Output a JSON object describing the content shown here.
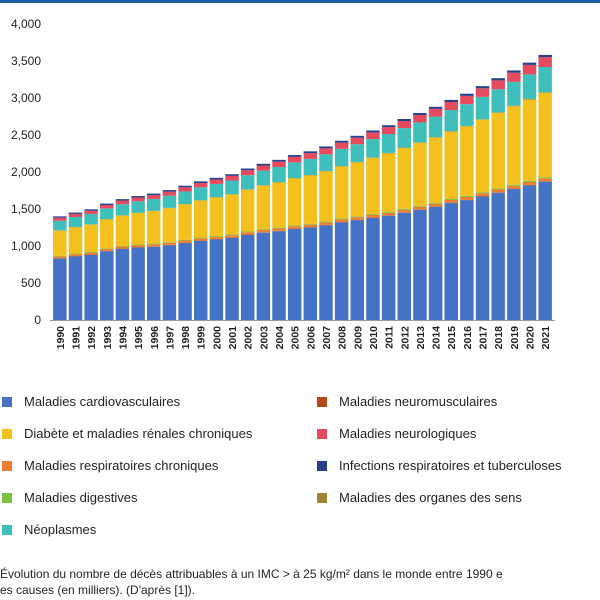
{
  "colors": {
    "Maladies cardiovasculaires": "#4472c4",
    "Maladies neuromusculaires": "#b44a1a",
    "Diabète et maladies rénales chroniques": "#f4c01e",
    "Maladies neurologiques": "#e64a5f",
    "Maladies respiratoires chroniques": "#ef7d30",
    "Infections respiratoires et tuberculoses": "#283f8c",
    "Maladies digestives": "#7cc242",
    "Maladies des organes des sens": "#a08434",
    "Néoplasmes": "#3fbfbb"
  },
  "legend": {
    "left": [
      "Maladies cardiovasculaires",
      "Diabète et maladies rénales chroniques",
      "Maladies respiratoires chroniques",
      "Maladies digestives",
      "Néoplasmes"
    ],
    "right": [
      "Maladies neuromusculaires",
      "Maladies neurologiques",
      "Infections respiratoires et tuberculoses",
      "Maladies des organes des sens"
    ]
  },
  "caption": {
    "line1": "Évolution du nombre de décès attribuables à un IMC > à 25 kg/m² dans le monde entre 1990 e",
    "line2": "es causes (en milliers). (D'après [1])."
  },
  "chart_data": {
    "type": "bar",
    "stacked": true,
    "title": "",
    "xlabel": "",
    "ylabel": "",
    "ylim": [
      0,
      4000
    ],
    "y_ticks": [
      "0",
      "500",
      "1,000",
      "1,500",
      "2,000",
      "2,500",
      "3,000",
      "3,500",
      "4,000"
    ],
    "grid": false,
    "legend_position": "bottom",
    "categories": [
      "1990",
      "1991",
      "1992",
      "1993",
      "1994",
      "1995",
      "1996",
      "1997",
      "1998",
      "1999",
      "2000",
      "2001",
      "2002",
      "2003",
      "2004",
      "2005",
      "2006",
      "2007",
      "2008",
      "2009",
      "2010",
      "2011",
      "2012",
      "2013",
      "2014",
      "2015",
      "2016",
      "2017",
      "2018",
      "2019",
      "2020",
      "2021"
    ],
    "series": [
      {
        "name": "Maladies cardiovasculaires",
        "values": [
          830,
          860,
          880,
          930,
          960,
          980,
          990,
          1010,
          1040,
          1070,
          1090,
          1110,
          1150,
          1180,
          1200,
          1230,
          1250,
          1280,
          1320,
          1350,
          1380,
          1410,
          1450,
          1490,
          1530,
          1580,
          1620,
          1670,
          1720,
          1770,
          1820,
          1870
        ]
      },
      {
        "name": "Maladies neuromusculaires",
        "values": [
          5,
          5,
          5,
          5,
          5,
          5,
          5,
          5,
          5,
          5,
          5,
          5,
          5,
          5,
          5,
          5,
          5,
          5,
          5,
          5,
          5,
          5,
          5,
          5,
          5,
          5,
          5,
          5,
          5,
          5,
          5,
          5
        ]
      },
      {
        "name": "Maladies respiratoires chroniques",
        "values": [
          25,
          25,
          26,
          26,
          27,
          27,
          28,
          28,
          29,
          29,
          30,
          30,
          31,
          31,
          32,
          32,
          33,
          33,
          34,
          34,
          35,
          35,
          36,
          36,
          37,
          37,
          38,
          38,
          39,
          39,
          40,
          40
        ]
      },
      {
        "name": "Maladies digestives",
        "values": [
          8,
          8,
          8,
          8,
          9,
          9,
          9,
          9,
          9,
          10,
          10,
          10,
          10,
          10,
          11,
          11,
          11,
          11,
          12,
          12,
          12,
          12,
          13,
          13,
          13,
          14,
          14,
          14,
          15,
          15,
          15,
          15
        ]
      },
      {
        "name": "Diabète et maladies rénales chroniques",
        "values": [
          340,
          355,
          370,
          390,
          410,
          425,
          440,
          460,
          480,
          500,
          520,
          540,
          565,
          590,
          610,
          635,
          655,
          680,
          705,
          730,
          760,
          790,
          820,
          850,
          880,
          910,
          940,
          980,
          1020,
          1060,
          1100,
          1140
        ]
      },
      {
        "name": "Maladies des organes des sens",
        "values": [
          4,
          4,
          4,
          4,
          4,
          4,
          4,
          4,
          4,
          4,
          4,
          5,
          5,
          5,
          5,
          5,
          5,
          5,
          5,
          5,
          5,
          6,
          6,
          6,
          6,
          6,
          6,
          6,
          7,
          7,
          7,
          7
        ]
      },
      {
        "name": "Néoplasmes",
        "values": [
          130,
          135,
          140,
          145,
          150,
          155,
          160,
          165,
          170,
          175,
          180,
          185,
          192,
          198,
          205,
          212,
          218,
          225,
          232,
          240,
          248,
          255,
          263,
          270,
          278,
          286,
          294,
          302,
          312,
          322,
          332,
          342
        ]
      },
      {
        "name": "Maladies neurologiques",
        "values": [
          40,
          42,
          44,
          46,
          48,
          50,
          52,
          54,
          56,
          58,
          60,
          63,
          66,
          69,
          72,
          75,
          78,
          81,
          84,
          87,
          90,
          93,
          96,
          100,
          104,
          108,
          112,
          116,
          120,
          124,
          128,
          132
        ]
      },
      {
        "name": "Infections respiratoires et tuberculoses",
        "values": [
          18,
          18,
          19,
          19,
          20,
          20,
          20,
          21,
          21,
          22,
          22,
          22,
          23,
          23,
          24,
          24,
          24,
          25,
          25,
          26,
          26,
          26,
          27,
          27,
          28,
          28,
          29,
          29,
          30,
          30,
          31,
          31
        ]
      }
    ]
  }
}
